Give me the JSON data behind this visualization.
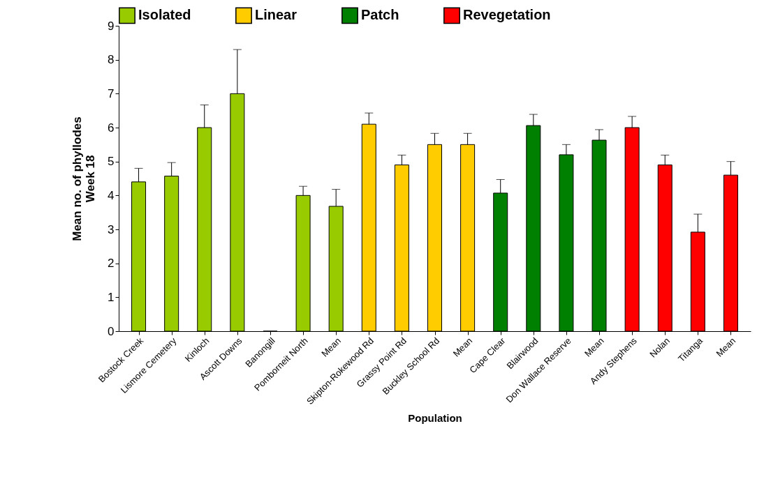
{
  "chart_data": {
    "type": "bar",
    "xlabel": "Population",
    "ylabel": "Mean no. of phyllodes\nWeek 18",
    "categories": [
      "Bostock Creek",
      "Lismore Cemetery",
      "Kinloch",
      "Ascott Downs",
      "Banongill",
      "Pomborneit North",
      "Mean",
      "Skipton-Rokewood Rd",
      "Grassy Point Rd",
      "Buckley School Rd",
      "Mean",
      "Cape Clear",
      "Blairwood",
      "Don Wallace Reserve",
      "Mean",
      "Andy Stephens",
      "Nolan",
      "Titanga",
      "Mean"
    ],
    "series": [
      {
        "name": "Isolated",
        "color": "#99cc00",
        "values": [
          4.4,
          4.57,
          6.0,
          7.0,
          0,
          4.0,
          3.68,
          null,
          null,
          null,
          null,
          null,
          null,
          null,
          null,
          null,
          null,
          null,
          null
        ],
        "errors": [
          0.4,
          0.4,
          0.67,
          1.3,
          null,
          0.27,
          0.5,
          null,
          null,
          null,
          null,
          null,
          null,
          null,
          null,
          null,
          null,
          null,
          null
        ]
      },
      {
        "name": "Linear",
        "color": "#ffcc00",
        "values": [
          null,
          null,
          null,
          null,
          null,
          null,
          null,
          6.1,
          4.9,
          5.5,
          5.5,
          null,
          null,
          null,
          null,
          null,
          null,
          null,
          null
        ],
        "errors": [
          null,
          null,
          null,
          null,
          null,
          null,
          null,
          0.33,
          0.29,
          0.33,
          0.33,
          null,
          null,
          null,
          null,
          null,
          null,
          null,
          null
        ]
      },
      {
        "name": "Patch",
        "color": "#008000",
        "values": [
          null,
          null,
          null,
          null,
          null,
          null,
          null,
          null,
          null,
          null,
          null,
          4.07,
          6.06,
          5.2,
          5.63,
          null,
          null,
          null,
          null
        ],
        "errors": [
          null,
          null,
          null,
          null,
          null,
          null,
          null,
          null,
          null,
          null,
          null,
          0.4,
          0.33,
          0.3,
          0.31,
          null,
          null,
          null,
          null
        ]
      },
      {
        "name": "Revegetation",
        "color": "#ff0000",
        "values": [
          null,
          null,
          null,
          null,
          null,
          null,
          null,
          null,
          null,
          null,
          null,
          null,
          null,
          null,
          null,
          6.0,
          4.9,
          2.92,
          4.6
        ],
        "errors": [
          null,
          null,
          null,
          null,
          null,
          null,
          null,
          null,
          null,
          null,
          null,
          null,
          null,
          null,
          null,
          0.33,
          0.29,
          0.53,
          0.4
        ]
      }
    ],
    "ylim": [
      0,
      9
    ],
    "yticks": [
      0,
      1,
      2,
      3,
      4,
      5,
      6,
      7,
      8,
      9
    ],
    "grid": false,
    "legend": "top"
  }
}
